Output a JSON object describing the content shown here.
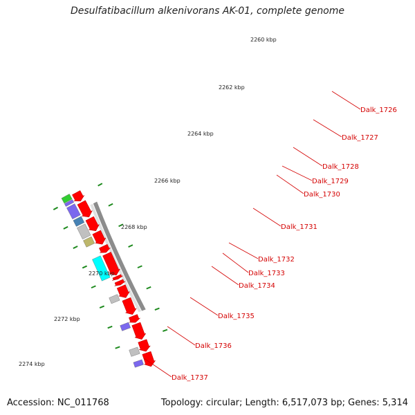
{
  "title": "Desulfatibacillum alkenivorans AK-01, complete genome",
  "footer": {
    "accession": "Accession: NC_011768",
    "summary": "Topology: circular; Length: 6,517,073 bp; Genes: 5,314"
  },
  "colors": {
    "forward_gene": "#ff0000",
    "backbone": "#8c8c8c",
    "tick_major": "#1e8a1e",
    "tick_minor": "#1e8a1e",
    "label": "#d40000",
    "cyan_gene": "#00ffff",
    "purple_gene": "#7b68ee",
    "steel_gene": "#4682b4",
    "gray_gene": "#c0c0c0",
    "olive_gene": "#bdb76b",
    "green_gene": "#32cd32"
  },
  "kbp_labels": [
    "2260 kbp",
    "2262 kbp",
    "2264 kbp",
    "2266 kbp",
    "2268 kbp",
    "2270 kbp",
    "2272 kbp",
    "2274 kbp"
  ],
  "gene_labels": [
    "Dalk_1726",
    "Dalk_1727",
    "Dalk_1728",
    "Dalk_1729",
    "Dalk_1730",
    "Dalk_1731",
    "Dalk_1732",
    "Dalk_1733",
    "Dalk_1734",
    "Dalk_1735",
    "Dalk_1736",
    "Dalk_1737"
  ]
}
